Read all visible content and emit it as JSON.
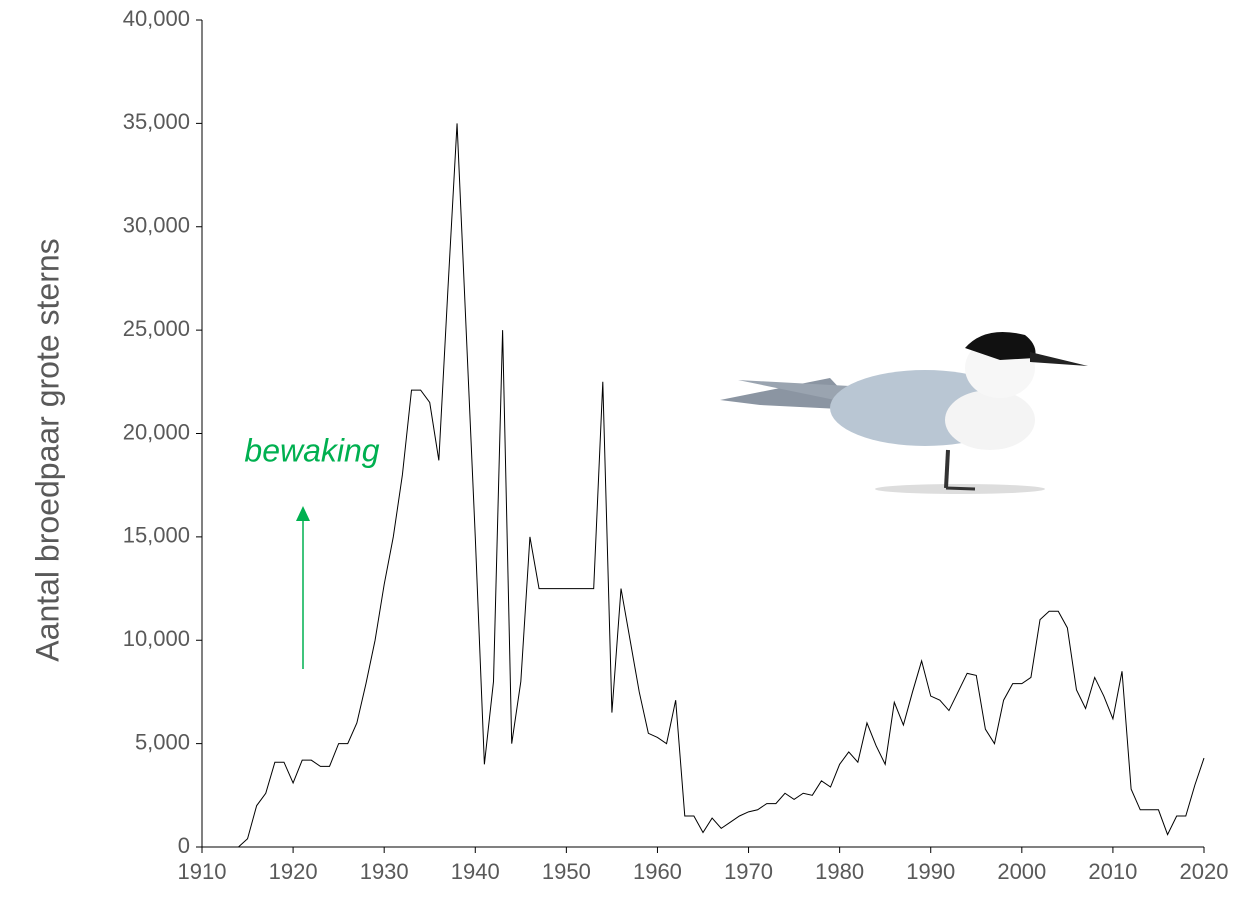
{
  "chart_data": {
    "type": "line",
    "y_label": "Aantal broedpaar grote sterns",
    "annotation": "bewaking",
    "x": [
      1910,
      1911,
      1912,
      1913,
      1914,
      1915,
      1916,
      1917,
      1918,
      1919,
      1920,
      1921,
      1922,
      1923,
      1924,
      1925,
      1926,
      1927,
      1928,
      1929,
      1930,
      1931,
      1932,
      1933,
      1934,
      1935,
      1936,
      1937,
      1938,
      1939,
      1940,
      1941,
      1942,
      1943,
      1944,
      1945,
      1946,
      1947,
      1948,
      1949,
      1950,
      1951,
      1952,
      1953,
      1954,
      1955,
      1956,
      1957,
      1958,
      1959,
      1960,
      1961,
      1962,
      1963,
      1964,
      1965,
      1966,
      1967,
      1968,
      1969,
      1970,
      1971,
      1972,
      1973,
      1974,
      1975,
      1976,
      1977,
      1978,
      1979,
      1980,
      1981,
      1982,
      1983,
      1984,
      1985,
      1986,
      1987,
      1988,
      1989,
      1990,
      1991,
      1992,
      1993,
      1994,
      1995,
      1996,
      1997,
      1998,
      1999,
      2000,
      2001,
      2002,
      2003,
      2004,
      2005,
      2006,
      2007,
      2008,
      2009,
      2010,
      2011,
      2012,
      2013,
      2014,
      2015,
      2016,
      2017,
      2018,
      2019,
      2020
    ],
    "series": [
      {
        "color": "#000000",
        "values": [
          0,
          0,
          0,
          0,
          0,
          400,
          2000,
          2600,
          4100,
          4100,
          3100,
          4200,
          4200,
          3900,
          3900,
          5000,
          5000,
          6000,
          7900,
          10000,
          12700,
          15000,
          18000,
          22100,
          22100,
          21500,
          18700,
          27000,
          35000,
          25000,
          15000,
          4000,
          8000,
          25000,
          5000,
          8000,
          15000,
          12500,
          12500,
          12500,
          12500,
          12500,
          12500,
          12500,
          22500,
          6500,
          12500,
          10000,
          7500,
          5500,
          5300,
          5000,
          7100,
          1500,
          1500,
          700,
          1400,
          900,
          1200,
          1500,
          1700,
          1800,
          2100,
          2100,
          2600,
          2300,
          2600,
          2500,
          3200,
          2900,
          4000,
          4600,
          4100,
          6000,
          4900,
          4000,
          7000,
          5900,
          7500,
          9000,
          7300,
          7100,
          6600,
          7500,
          8400,
          8300,
          5700,
          5000,
          7100,
          7900,
          7900,
          8200,
          11000,
          11400,
          11400,
          10600,
          7600,
          6700,
          8200,
          7300,
          6200,
          8500,
          2800,
          1800,
          1800,
          1800,
          600,
          1500,
          1500,
          3000,
          4300
        ]
      }
    ],
    "xlim": [
      1910,
      2020
    ],
    "xticks": [
      1910,
      1920,
      1930,
      1940,
      1950,
      1960,
      1970,
      1980,
      1990,
      2000,
      2010,
      2020
    ],
    "ylim": [
      0,
      40000
    ],
    "yticks": [
      0,
      {
        "value": 5000,
        "label": "5,000"
      },
      {
        "value": 10000,
        "label": "10,000"
      },
      {
        "value": 15000,
        "label": "15,000"
      },
      {
        "value": 20000,
        "label": "20,000"
      },
      {
        "value": 25000,
        "label": "25,000"
      },
      {
        "value": 30000,
        "label": "30,000"
      },
      {
        "value": 35000,
        "label": "35,000"
      },
      {
        "value": 40000,
        "label": "40,000"
      }
    ],
    "grid": false
  }
}
